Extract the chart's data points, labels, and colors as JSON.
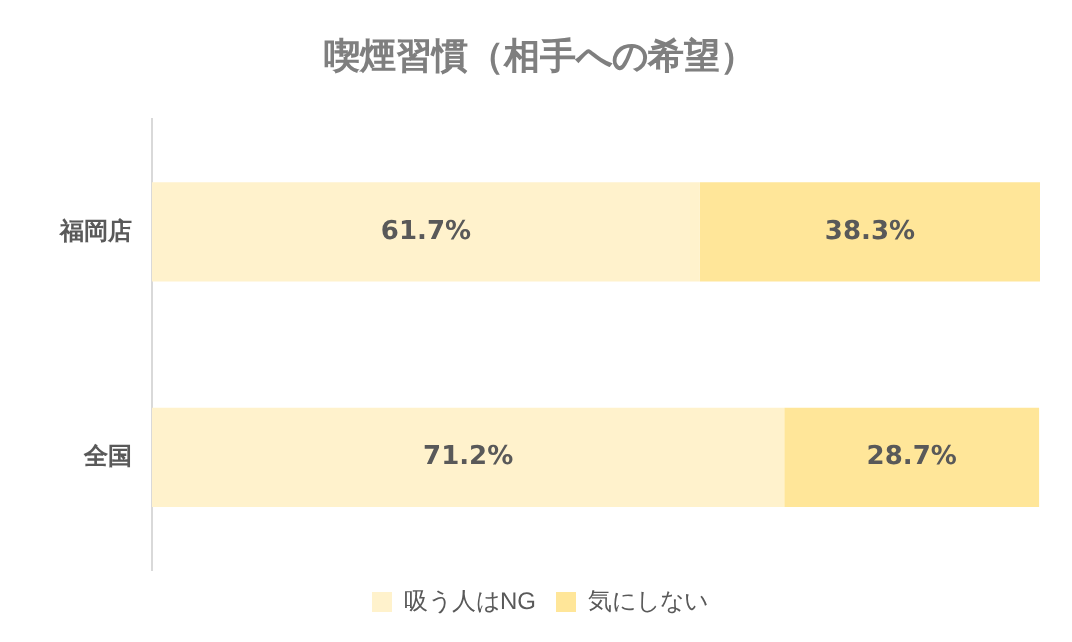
{
  "chart_data": {
    "type": "bar",
    "orientation": "horizontal",
    "stacked": true,
    "title": "喫煙習慣（相手への希望）",
    "categories": [
      "福岡店",
      "全国"
    ],
    "series": [
      {
        "name": "吸う人はNG",
        "color": "#fff2cc",
        "values": [
          61.7,
          71.2
        ],
        "value_labels": [
          "61.7%",
          "71.2%"
        ]
      },
      {
        "name": "気にしない",
        "color": "#ffe699",
        "values": [
          38.3,
          28.7
        ],
        "value_labels": [
          "38.3%",
          "28.7%"
        ]
      }
    ],
    "xlim": [
      0,
      100
    ],
    "tick_labels": "y",
    "legend": "bottom"
  }
}
